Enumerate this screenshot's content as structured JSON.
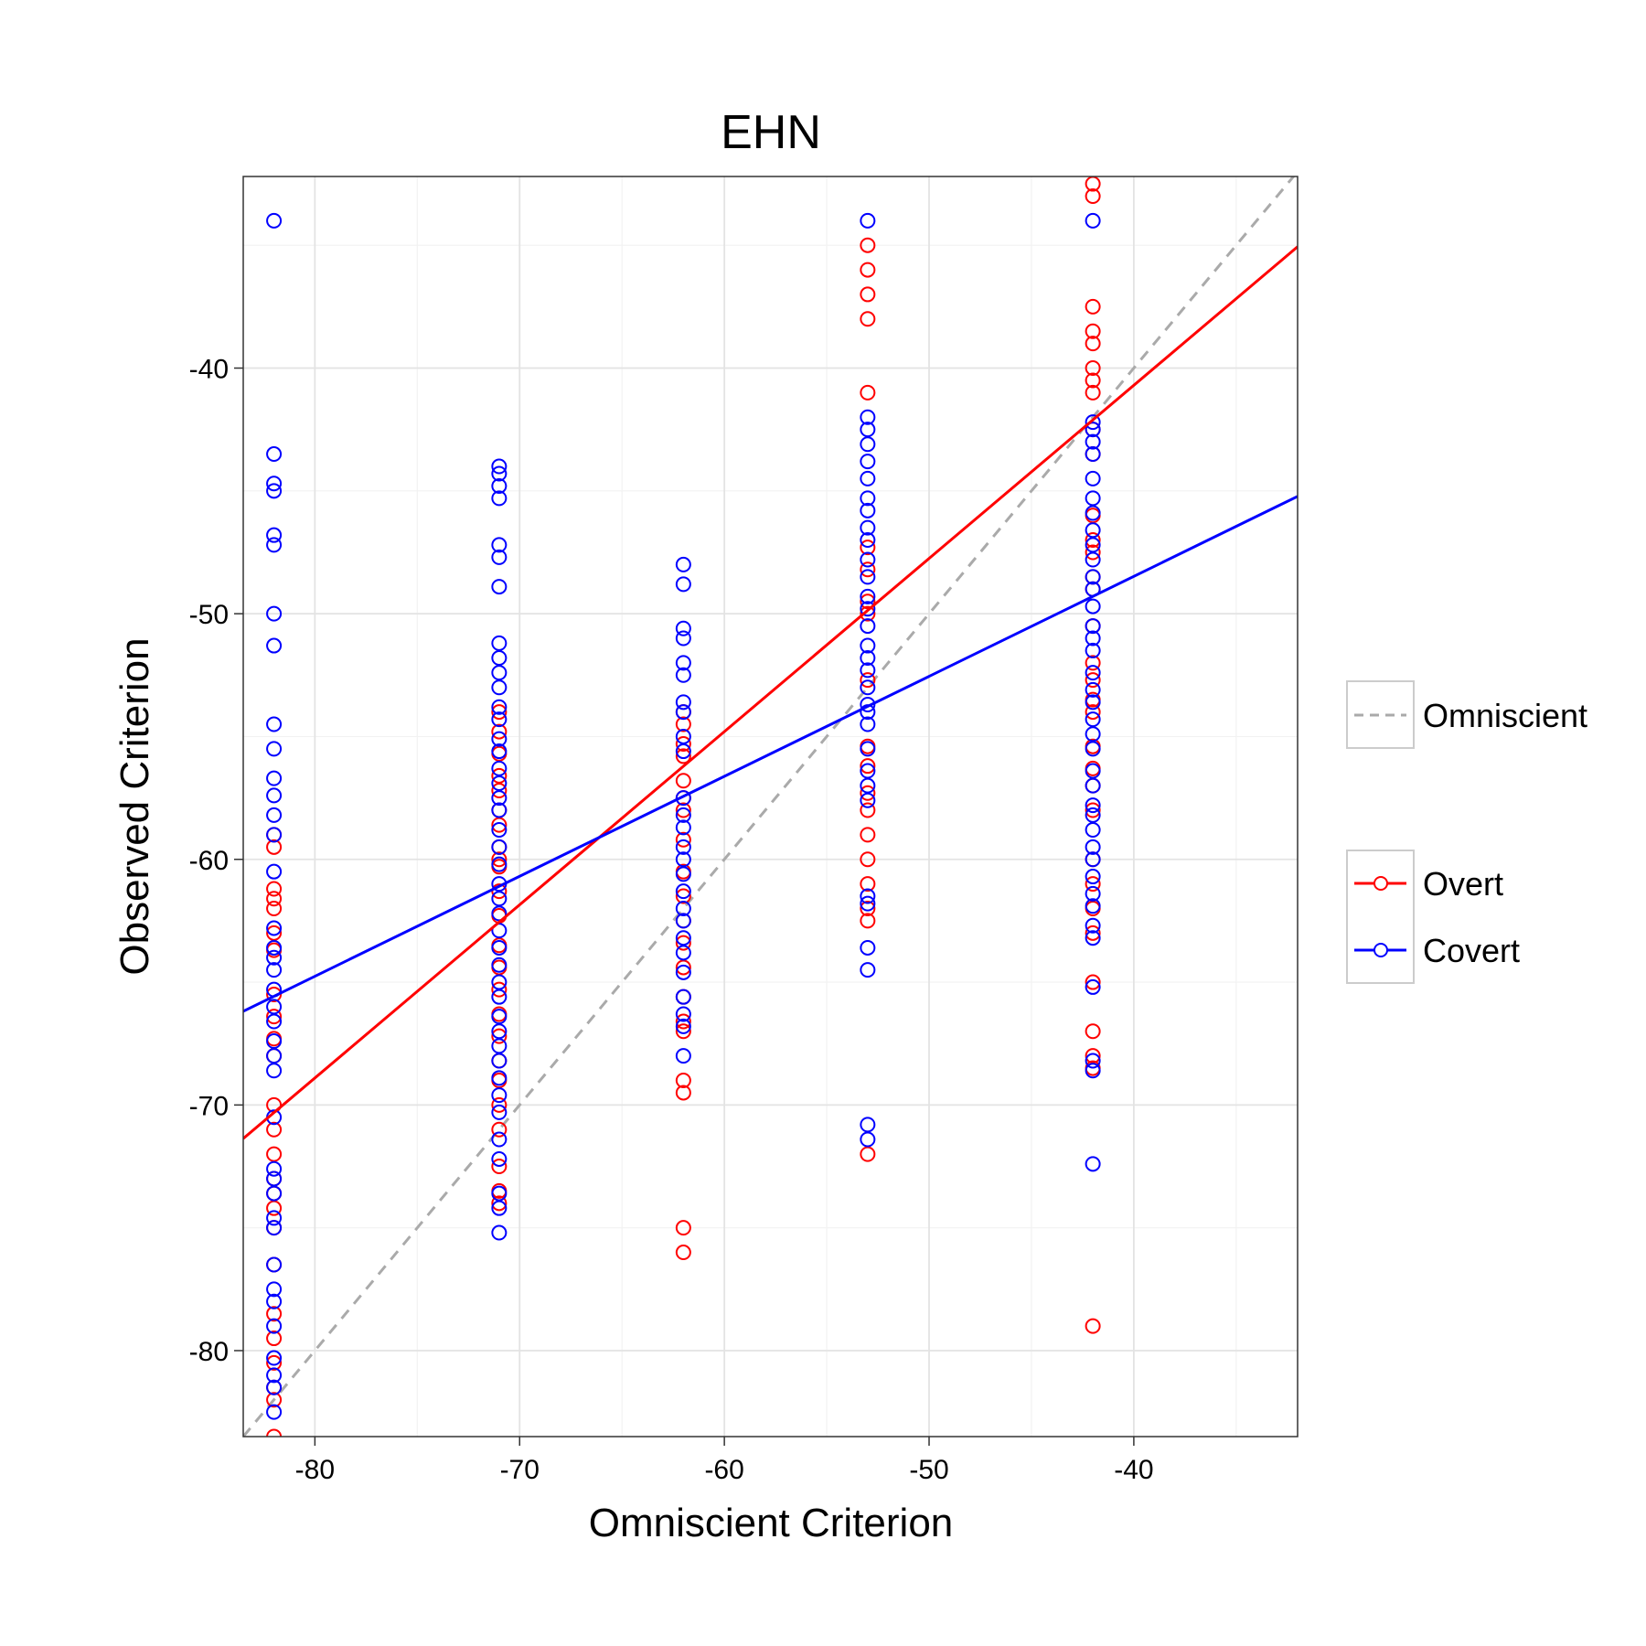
{
  "chart_data": {
    "type": "scatter",
    "title": "EHN",
    "xlabel": "Omniscient Criterion",
    "ylabel": "Observed Criterion",
    "xlim": [
      -83.5,
      -32
    ],
    "ylim": [
      -83.5,
      -32.2
    ],
    "xticks": [
      -80,
      -70,
      -60,
      -50,
      -40
    ],
    "yticks": [
      -80,
      -70,
      -60,
      -50,
      -40
    ],
    "xtick_labels": [
      "-80",
      "-70",
      "-60",
      "-50",
      "-40"
    ],
    "ytick_labels": [
      "-80",
      "-70",
      "-60",
      "-50",
      "-40"
    ],
    "grid": true,
    "legend_position": "right",
    "reference_line": {
      "name": "Omniscient",
      "slope": 1,
      "intercept": 0,
      "color": "#aaaaaa",
      "style": "dashed"
    },
    "series": [
      {
        "name": "Overt",
        "color": "#ff0000",
        "fit": {
          "slope": 0.705,
          "intercept": -12.5
        },
        "points": [
          {
            "x": -82,
            "values": [
              -59.0,
              -59.5,
              -61.2,
              -61.6,
              -62.0,
              -63.0,
              -63.7,
              -65.5,
              -66.4,
              -67.3,
              -68.0,
              -70.0,
              -71.0,
              -72.0,
              -73.0,
              -73.6,
              -74.2,
              -75.0,
              -76.5,
              -78.5,
              -79.5,
              -80.5,
              -81.5,
              -82.0,
              -83.5
            ]
          },
          {
            "x": -71,
            "values": [
              -54.0,
              -54.8,
              -55.7,
              -56.6,
              -57.2,
              -58.0,
              -58.6,
              -59.5,
              -60.0,
              -60.3,
              -61.3,
              -62.3,
              -63.5,
              -64.4,
              -65.3,
              -66.3,
              -67.2,
              -68.2,
              -69.0,
              -70.0,
              -71.0,
              -72.5,
              -73.5,
              -74.0
            ]
          },
          {
            "x": -62,
            "values": [
              -54.0,
              -54.5,
              -55.3,
              -55.8,
              -56.8,
              -57.5,
              -58.0,
              -59.2,
              -60.5,
              -61.5,
              -62.5,
              -63.4,
              -64.4,
              -65.6,
              -66.6,
              -67.0,
              -69.0,
              -69.5,
              -75.0,
              -76.0
            ]
          },
          {
            "x": -53,
            "values": [
              -35.0,
              -36.0,
              -37.0,
              -38.0,
              -41.0,
              -47.3,
              -48.2,
              -49.5,
              -50.0,
              -52.7,
              -55.4,
              -56.2,
              -57.3,
              -58.0,
              -59.0,
              -60.0,
              -61.0,
              -62.0,
              -62.5,
              -72.0
            ]
          },
          {
            "x": -42,
            "values": [
              -32.5,
              -33.0,
              -37.5,
              -38.5,
              -39.0,
              -40.0,
              -40.5,
              -41.0,
              -42.5,
              -43.5,
              -46.0,
              -47.0,
              -47.5,
              -48.5,
              -49.0,
              -50.5,
              -52.0,
              -52.7,
              -53.5,
              -54.0,
              -55.4,
              -56.3,
              -57.0,
              -58.0,
              -60.0,
              -61.0,
              -62.0,
              -63.0,
              -65.0,
              -67.0,
              -68.0,
              -68.5,
              -79.0
            ]
          }
        ]
      },
      {
        "name": "Covert",
        "color": "#0000ff",
        "fit": {
          "slope": 0.407,
          "intercept": -32.2
        },
        "points": [
          {
            "x": -82,
            "values": [
              -34.0,
              -43.5,
              -44.7,
              -45.0,
              -46.8,
              -47.2,
              -50.0,
              -51.3,
              -54.5,
              -55.5,
              -56.7,
              -57.4,
              -58.2,
              -59.0,
              -60.5,
              -62.8,
              -63.6,
              -64.0,
              -64.5,
              -65.3,
              -66.0,
              -66.6,
              -67.4,
              -68.0,
              -68.6,
              -70.5,
              -72.6,
              -73.0,
              -73.6,
              -74.6,
              -75.0,
              -76.5,
              -77.5,
              -78.0,
              -79.0,
              -80.3,
              -81.0,
              -81.5,
              -82.5
            ]
          },
          {
            "x": -71,
            "values": [
              -44.0,
              -44.3,
              -44.8,
              -45.3,
              -47.2,
              -47.7,
              -48.9,
              -51.2,
              -51.8,
              -52.4,
              -53.0,
              -53.8,
              -54.3,
              -55.1,
              -55.6,
              -56.3,
              -56.9,
              -57.5,
              -58.0,
              -58.8,
              -59.5,
              -60.2,
              -61.0,
              -61.6,
              -62.2,
              -62.9,
              -63.6,
              -64.3,
              -65.0,
              -65.6,
              -66.4,
              -67.0,
              -67.6,
              -68.2,
              -68.9,
              -69.6,
              -70.3,
              -71.4,
              -72.2,
              -73.6,
              -74.2,
              -75.2
            ]
          },
          {
            "x": -62,
            "values": [
              -48.0,
              -48.8,
              -50.6,
              -51.0,
              -52.0,
              -52.5,
              -53.6,
              -54.0,
              -55.0,
              -55.6,
              -57.5,
              -58.2,
              -58.7,
              -59.5,
              -60.0,
              -60.6,
              -61.3,
              -62.0,
              -62.5,
              -63.2,
              -63.8,
              -64.6,
              -65.6,
              -66.3,
              -66.8,
              -68.0
            ]
          },
          {
            "x": -53,
            "values": [
              -34.0,
              -42.0,
              -42.5,
              -43.1,
              -43.8,
              -44.5,
              -45.3,
              -45.8,
              -46.5,
              -47.0,
              -47.8,
              -48.5,
              -49.3,
              -49.8,
              -50.5,
              -51.3,
              -51.8,
              -52.3,
              -53.0,
              -53.7,
              -54.0,
              -54.5,
              -55.5,
              -56.4,
              -57.0,
              -57.6,
              -61.5,
              -61.8,
              -63.6,
              -64.5,
              -70.8,
              -71.4
            ]
          },
          {
            "x": -42,
            "values": [
              -34.0,
              -42.2,
              -42.5,
              -43.0,
              -43.5,
              -44.5,
              -45.3,
              -45.9,
              -46.6,
              -47.2,
              -47.8,
              -48.5,
              -49.0,
              -49.7,
              -50.5,
              -51.0,
              -51.5,
              -52.4,
              -53.1,
              -53.6,
              -54.3,
              -54.9,
              -55.5,
              -56.4,
              -57.0,
              -57.8,
              -58.2,
              -58.8,
              -59.5,
              -60.0,
              -60.7,
              -61.4,
              -61.9,
              -62.7,
              -63.2,
              -65.2,
              -68.2,
              -68.6,
              -72.4
            ]
          }
        ]
      }
    ]
  }
}
